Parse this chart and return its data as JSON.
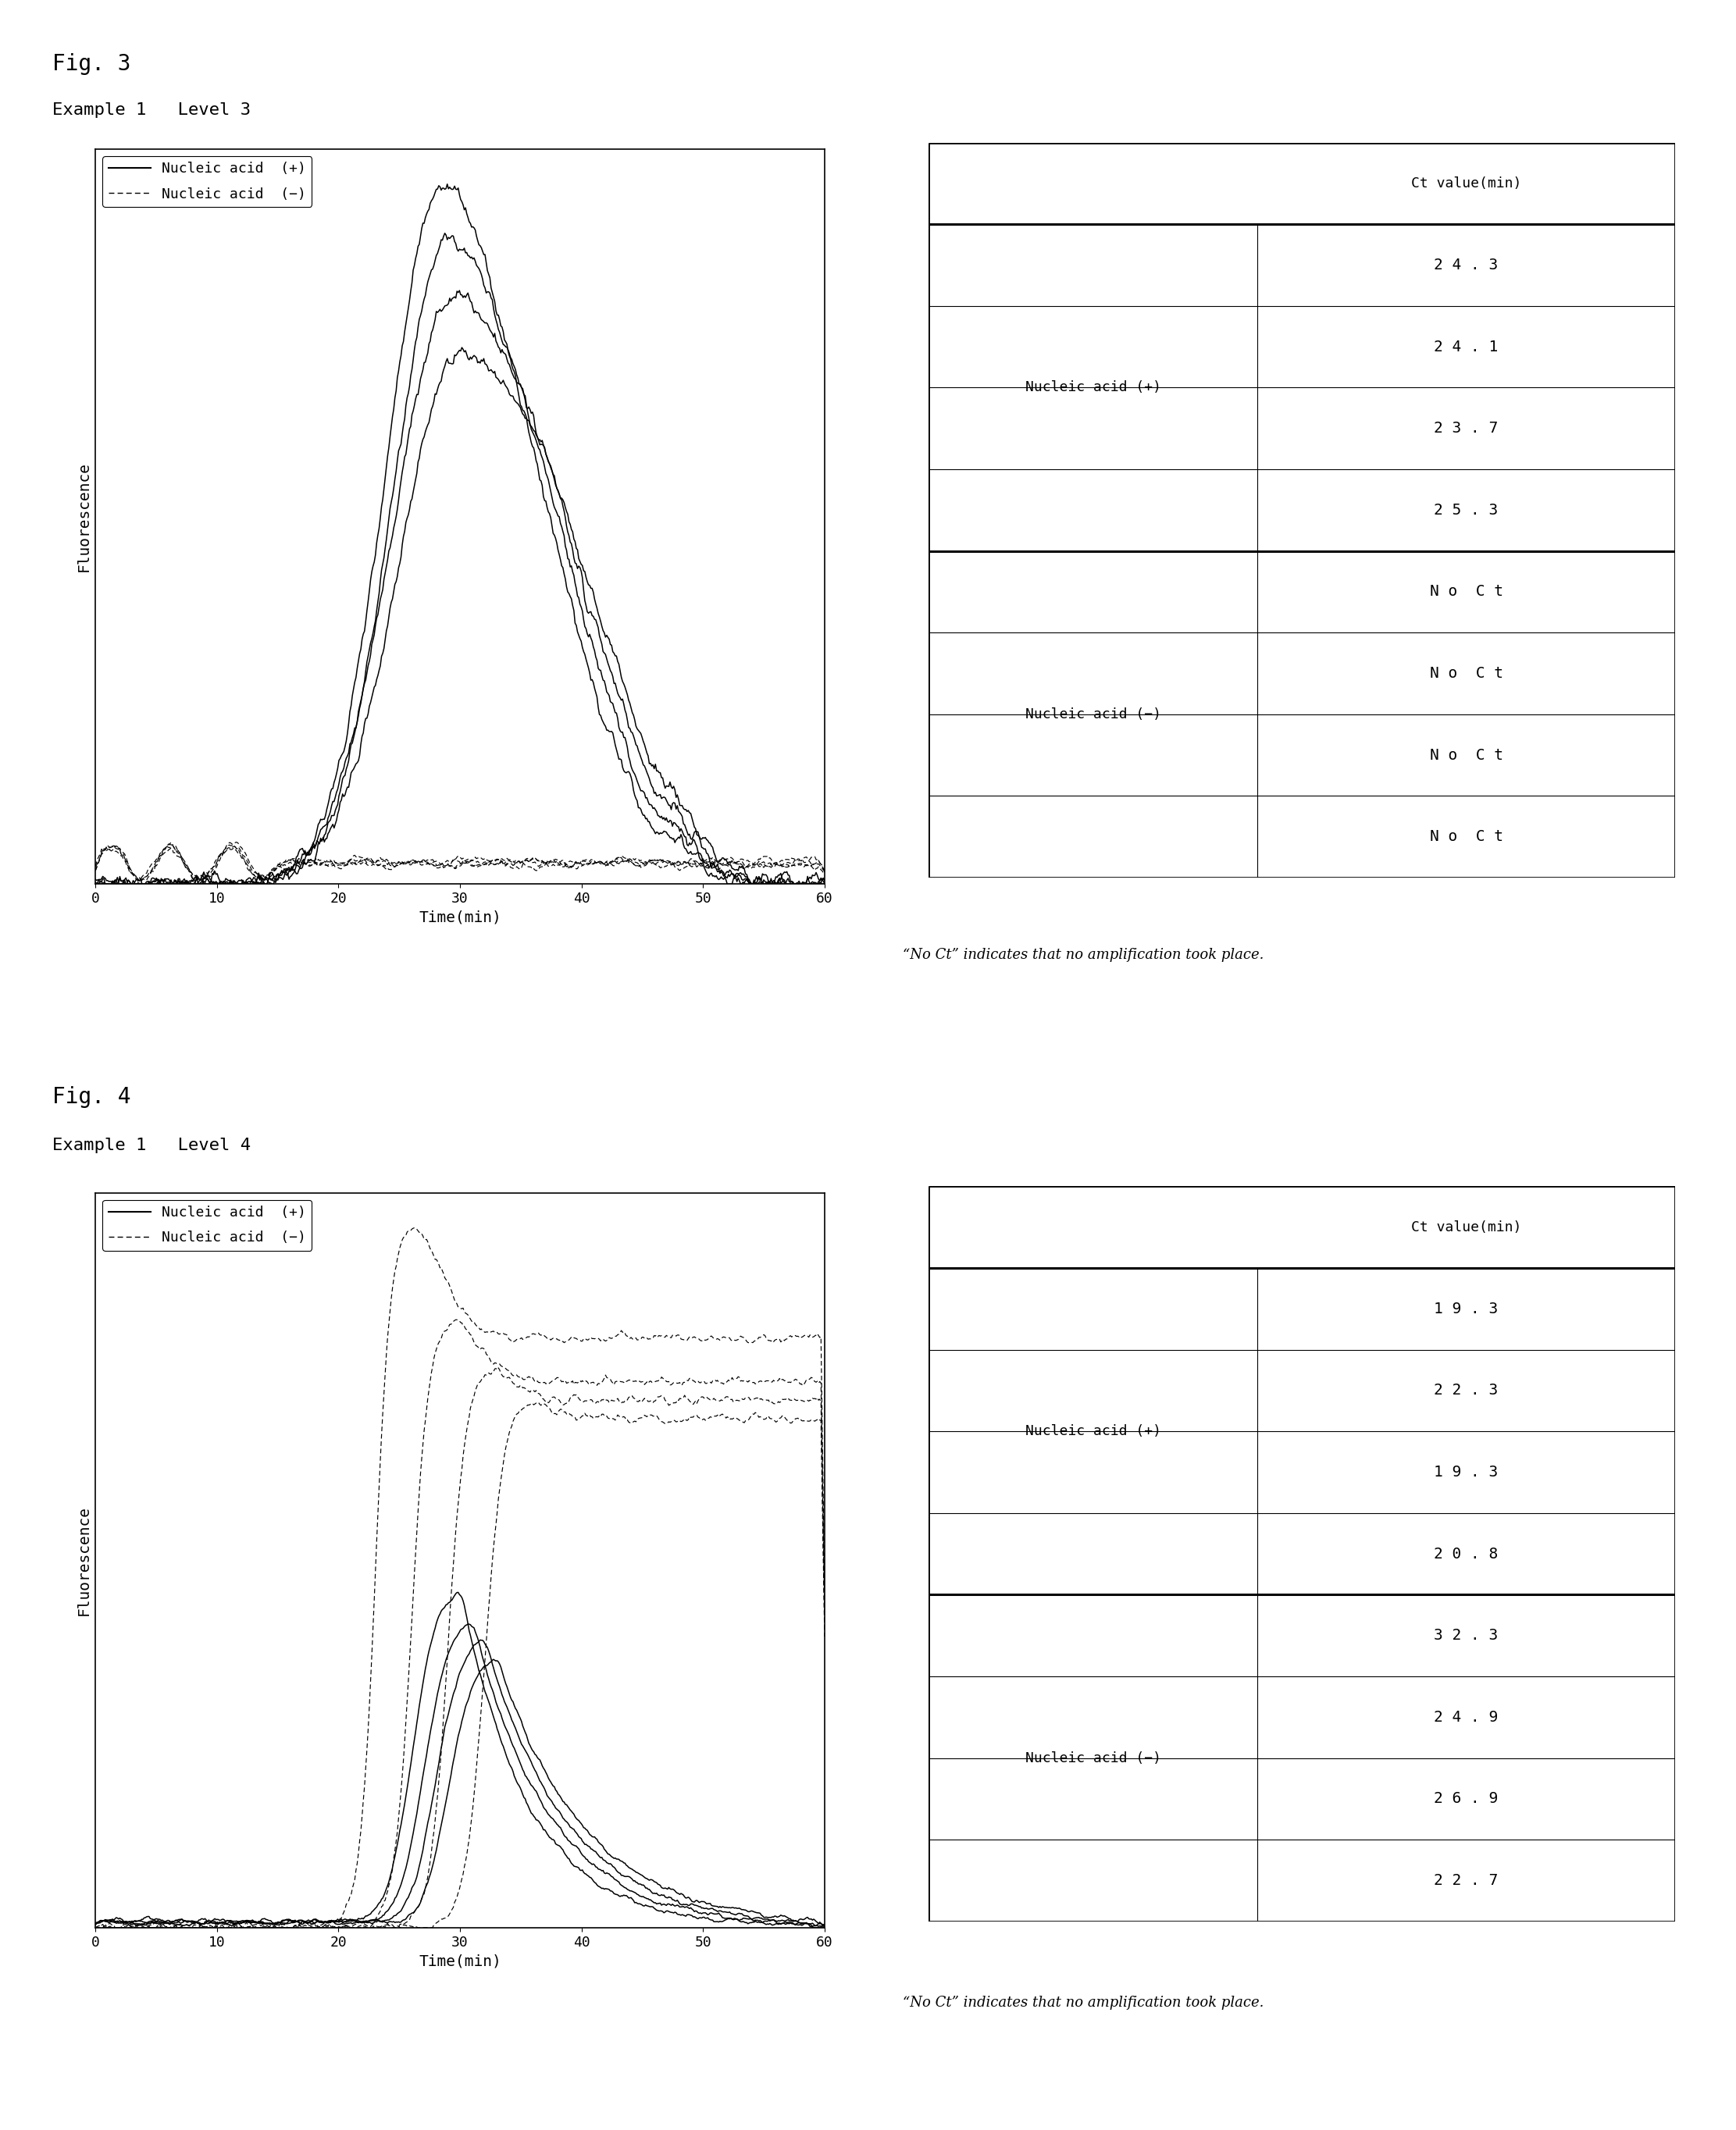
{
  "fig3_title": "Fig. 3",
  "fig3_subtitle": "Example 1   Level 3",
  "fig4_title": "Fig. 4",
  "fig4_subtitle": "Example 1   Level 4",
  "xlabel": "Time(min)",
  "ylabel": "Fluorescence",
  "xmin": 0,
  "xmax": 60,
  "xticks": [
    0,
    10,
    20,
    30,
    40,
    50,
    60
  ],
  "legend_solid": "Nucleic acid  (+)",
  "legend_dashed": "Nucleic acid  (−)",
  "no_ct_note": "“No Ct” indicates that no amplification took place.",
  "table3_col_header": "Ct value(min)",
  "table3_row1_label": "Nucleic acid (+)",
  "table3_row2_label": "Nucleic acid (−)",
  "table3_row1_values": [
    "2 4 . 3",
    "2 4 . 1",
    "2 3 . 7",
    "2 5 . 3"
  ],
  "table3_row2_values": [
    "N o  C t",
    "N o  C t",
    "N o  C t",
    "N o  C t"
  ],
  "table4_col_header": "Ct value(min)",
  "table4_row1_label": "Nucleic acid (+)",
  "table4_row2_label": "Nucleic acid (−)",
  "table4_row1_values": [
    "1 9 . 3",
    "2 2 . 3",
    "1 9 . 3",
    "2 0 . 8"
  ],
  "table4_row2_values": [
    "3 2 . 3",
    "2 4 . 9",
    "2 6 . 9",
    "2 2 . 7"
  ],
  "background_color": "#ffffff",
  "font_size_title": 20,
  "font_size_subtitle": 16,
  "font_size_axis": 14,
  "font_size_tick": 13,
  "font_size_legend": 13,
  "font_size_table_header": 13,
  "font_size_table_data": 14,
  "font_size_table_label": 13,
  "font_size_note": 13
}
